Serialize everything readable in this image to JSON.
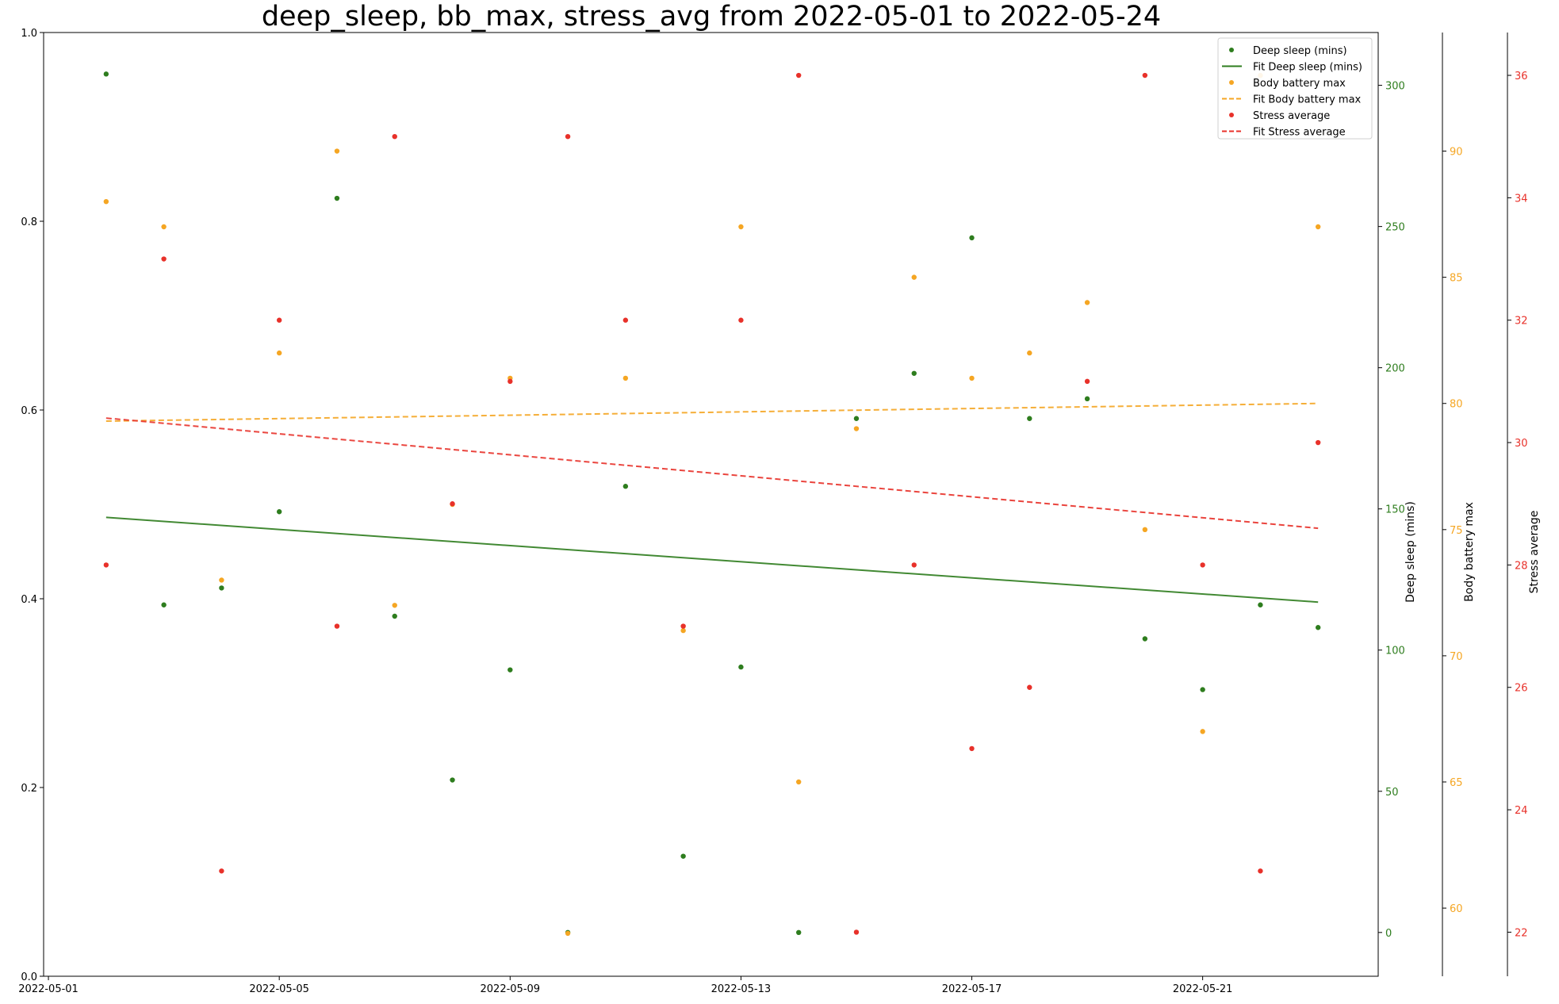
{
  "chart_data": {
    "type": "scatter",
    "title": "deep_sleep, bb_max, stress_avg from 2022-05-01 to 2022-05-24",
    "x": [
      "2022-05-02",
      "2022-05-03",
      "2022-05-04",
      "2022-05-05",
      "2022-05-06",
      "2022-05-07",
      "2022-05-08",
      "2022-05-09",
      "2022-05-10",
      "2022-05-11",
      "2022-05-12",
      "2022-05-13",
      "2022-05-14",
      "2022-05-15",
      "2022-05-16",
      "2022-05-17",
      "2022-05-18",
      "2022-05-19",
      "2022-05-20",
      "2022-05-21",
      "2022-05-22",
      "2022-05-23"
    ],
    "xlim": [
      "2022-04-30T22:00",
      "2022-05-24T01:00"
    ],
    "xticks": [
      "2022-05-01",
      "2022-05-05",
      "2022-05-09",
      "2022-05-13",
      "2022-05-17",
      "2022-05-21"
    ],
    "left_axis": {
      "ylim": [
        0,
        1
      ],
      "ticks": [
        "0.0",
        "0.2",
        "0.4",
        "0.6",
        "0.8",
        "1.0"
      ]
    },
    "grid": false,
    "legend_placement": "top-right",
    "series": [
      {
        "name": "Deep sleep (mins)",
        "axis_label": "Deep sleep (mins)",
        "color": "#2e7d1e",
        "values": [
          304,
          116,
          122,
          149,
          260,
          112,
          54,
          93,
          0,
          158,
          27,
          94,
          0,
          182,
          198,
          246,
          182,
          189,
          104,
          86,
          116,
          108
        ],
        "fit_name": "Fit Deep sleep (mins)",
        "fit": [
          147,
          117
        ],
        "fit_style": "solid",
        "ylim": [
          -15.5,
          318.7
        ],
        "ticks": [
          0,
          50,
          100,
          150,
          200,
          250,
          300
        ]
      },
      {
        "name": "Body battery max",
        "axis_label": "Body battery max",
        "color": "#f5a623",
        "values": [
          88,
          87,
          73,
          82,
          90,
          72,
          76,
          81,
          59,
          81,
          71,
          87,
          65,
          79,
          85,
          81,
          82,
          84,
          75,
          67,
          93,
          87
        ],
        "fit_name": "Fit Body battery max",
        "fit": [
          79.3,
          80.0
        ],
        "fit_style": "dashed",
        "ylim": [
          57.3,
          94.7
        ],
        "ticks": [
          60,
          65,
          70,
          75,
          80,
          85,
          90
        ]
      },
      {
        "name": "Stress average",
        "axis_label": "Stress average",
        "color": "#e8312a",
        "values": [
          28,
          33,
          23,
          32,
          27,
          35,
          29,
          31,
          35,
          32,
          27,
          32,
          36,
          22,
          28,
          25,
          26,
          31,
          36,
          28,
          23,
          30
        ],
        "fit_name": "Fit Stress average",
        "fit": [
          30.4,
          28.6
        ],
        "fit_style": "dashed",
        "ylim": [
          21.28,
          36.7
        ],
        "ticks": [
          22,
          24,
          26,
          28,
          30,
          32,
          34,
          36
        ]
      }
    ]
  }
}
